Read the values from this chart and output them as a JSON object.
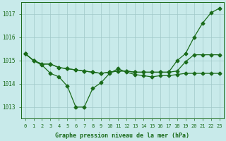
{
  "x": [
    0,
    1,
    2,
    3,
    4,
    5,
    6,
    7,
    8,
    9,
    10,
    11,
    12,
    13,
    14,
    15,
    16,
    17,
    18,
    19,
    20,
    21,
    22,
    23
  ],
  "line_steep_up": [
    1015.3,
    1015.0,
    1014.85,
    1014.85,
    1014.7,
    1014.65,
    1014.6,
    1014.55,
    1014.5,
    1014.45,
    1014.5,
    1014.55,
    1014.55,
    1014.5,
    1014.5,
    1014.5,
    1014.5,
    1014.5,
    1014.55,
    1014.95,
    1015.25,
    1015.25,
    1015.25,
    1015.25
  ],
  "line_dip": [
    1015.3,
    1015.0,
    1014.8,
    1014.45,
    1014.3,
    1013.9,
    1013.0,
    1013.0,
    1013.8,
    1014.05,
    1014.45,
    1014.65,
    1014.5,
    1014.4,
    1014.35,
    1014.3,
    1014.35,
    1014.35,
    1014.4,
    1014.45,
    1014.45,
    1014.45,
    1014.45,
    1014.45
  ],
  "line_rise": [
    1015.3,
    1015.0,
    1014.85,
    1014.85,
    1014.7,
    1014.65,
    1014.6,
    1014.55,
    1014.5,
    1014.45,
    1014.5,
    1014.55,
    1014.55,
    1014.5,
    1014.5,
    1014.5,
    1014.5,
    1014.5,
    1015.0,
    1015.3,
    1016.0,
    1016.6,
    1017.05,
    1017.25
  ],
  "line_color": "#1a6b1a",
  "bg_color": "#c8eaea",
  "grid_color": "#a0c8c8",
  "text_color": "#1a6b1a",
  "ylabel_values": [
    1013,
    1014,
    1015,
    1016,
    1017
  ],
  "xlabel": "Graphe pression niveau de la mer (hPa)",
  "xlim": [
    -0.5,
    23.5
  ],
  "ylim": [
    1012.5,
    1017.5
  ],
  "marker": "D",
  "markersize": 2.5,
  "linewidth": 0.9
}
